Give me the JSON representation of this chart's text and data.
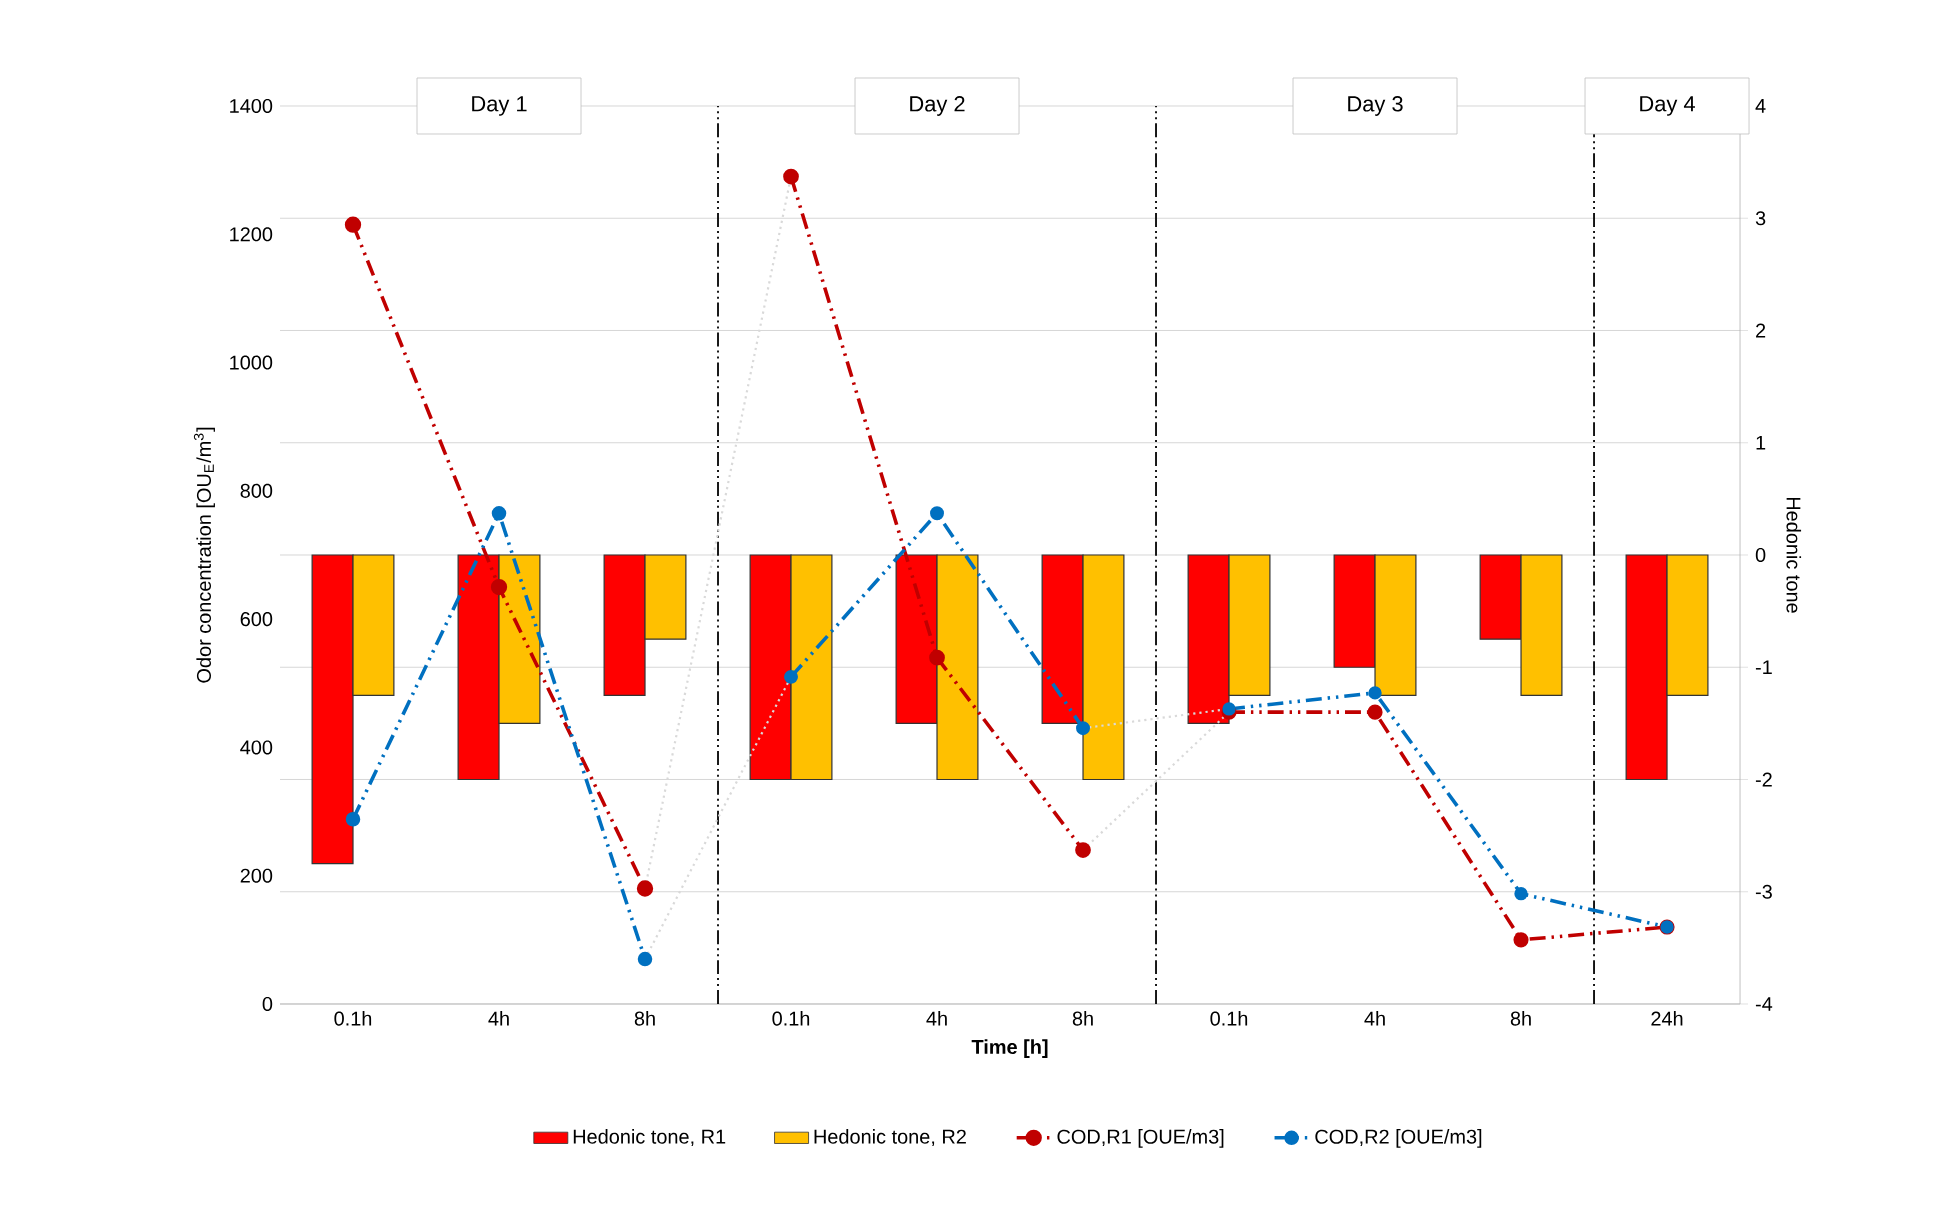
{
  "chart_data": {
    "type": "bar",
    "categories": [
      "0.1h",
      "4h",
      "8h",
      "0.1h",
      "4h",
      "8h",
      "0.1h",
      "4h",
      "8h",
      "24h"
    ],
    "xlabel": "**Time [h]**",
    "ylabel": "Odor concentration [OU$_{E}$/m$^{3}$]",
    "y2label": "Hedonic tone",
    "ylim": [
      0,
      1400
    ],
    "yticks": [
      0,
      200,
      400,
      600,
      800,
      1000,
      1200,
      1400
    ],
    "y2lim": [
      -4,
      4
    ],
    "y2ticks": [
      -4,
      -3,
      -2,
      -1,
      0,
      1,
      2,
      3,
      4
    ],
    "grid": "y",
    "legend": "bottom",
    "annotations": [
      "Day 1",
      "Day 2",
      "Day 3",
      "Day 4"
    ],
    "series": [
      {
        "axis": "y2",
        "name": "Hedonic tone, R1",
        "color": "#ff0000",
        "values": [
          -2.75,
          -2,
          -1.25,
          -2,
          -1.5,
          -1.5,
          -1.5,
          -1,
          -0.75,
          -2
        ]
      },
      {
        "axis": "y2",
        "name": "Hedonic tone, R2",
        "color": "#ffc000",
        "values": [
          -1.25,
          -1.5,
          -0.75,
          -2,
          -2,
          -2,
          -1.25,
          -1.25,
          -1.25,
          -1.25
        ]
      },
      {
        "type": "line",
        "color": "#d9d9d9",
        "line_style": "dotted",
        "marker": "none",
        "values": [
          null,
          null,
          180,
          1290,
          null,
          null,
          null,
          null,
          null,
          null
        ]
      },
      {
        "type": "line",
        "color": "#d9d9d9",
        "line_style": "dotted",
        "marker": "none",
        "values": [
          null,
          null,
          null,
          null,
          null,
          240,
          455,
          null,
          null,
          null
        ]
      },
      {
        "type": "line",
        "color": "#d9d9d9",
        "line_style": "dotted",
        "marker": "none",
        "values": [
          null,
          null,
          70,
          510,
          null,
          null,
          null,
          null,
          null,
          null
        ]
      },
      {
        "type": "line",
        "color": "#d9d9d9",
        "line_style": "dotted",
        "marker": "none",
        "values": [
          null,
          null,
          null,
          null,
          null,
          430,
          460,
          null,
          null,
          null
        ]
      },
      {
        "type": "line",
        "name": "COD,R1 [OUE/m3]",
        "color": "#c00000",
        "line_style": "dashed",
        "marker": "circle",
        "values": [
          1215,
          650,
          180,
          null,
          null,
          null,
          null,
          null,
          null,
          null
        ]
      },
      {
        "type": "line",
        "color": "#c00000",
        "line_style": "dashed",
        "marker": "circle",
        "values": [
          null,
          null,
          null,
          1290,
          540,
          240,
          null,
          null,
          null,
          null
        ]
      },
      {
        "type": "line",
        "color": "#c00000",
        "line_style": "dashed",
        "marker": "circle",
        "values": [
          null,
          null,
          null,
          null,
          null,
          null,
          455,
          455,
          100,
          120
        ]
      },
      {
        "type": "line",
        "name": "COD,R2 [OUE/m3]",
        "color": "#0070c0",
        "line_style": "dashed",
        "marker": "circle",
        "values": [
          288,
          765,
          70,
          null,
          null,
          null,
          null,
          null,
          null,
          null
        ]
      },
      {
        "type": "line",
        "color": "#0070c0",
        "line_style": "dashed",
        "marker": "circle",
        "values": [
          null,
          null,
          null,
          510,
          765,
          430,
          null,
          null,
          null,
          null
        ]
      },
      {
        "type": "line",
        "color": "#0070c0",
        "line_style": "dashed",
        "marker": "circle",
        "values": [
          null,
          null,
          null,
          null,
          null,
          null,
          460,
          485,
          172,
          120
        ]
      }
    ]
  }
}
